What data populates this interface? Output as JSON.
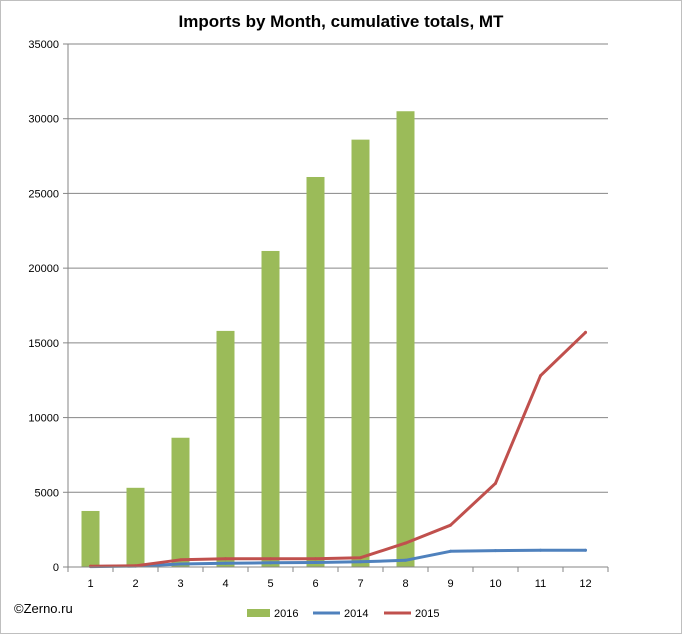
{
  "title": "Imports by Month, cumulative totals, MT",
  "copyright": "©Zerno.ru",
  "colors": {
    "2016": "#9bbb59",
    "2014": "#4f81bd",
    "2015": "#c0504d",
    "grid": "#868686",
    "axis": "#868686"
  },
  "chart_data": {
    "type": "bar",
    "title": "Imports by Month, cumulative totals, MT",
    "xlabel": "",
    "ylabel": "",
    "categories": [
      "1",
      "2",
      "3",
      "4",
      "5",
      "6",
      "7",
      "8",
      "9",
      "10",
      "11",
      "12"
    ],
    "ylim": [
      0,
      35000
    ],
    "yticks": [
      0,
      5000,
      10000,
      15000,
      20000,
      25000,
      30000,
      35000
    ],
    "grid": true,
    "legend_position": "bottom",
    "series": [
      {
        "name": "2016",
        "type": "bar",
        "color": "#9bbb59",
        "values": [
          3750,
          5300,
          8650,
          15800,
          21150,
          26100,
          28600,
          30500,
          null,
          null,
          null,
          null
        ]
      },
      {
        "name": "2014",
        "type": "line",
        "color": "#4f81bd",
        "values": [
          30,
          60,
          200,
          250,
          280,
          300,
          350,
          450,
          1050,
          1100,
          1120,
          1120
        ]
      },
      {
        "name": "2015",
        "type": "line",
        "color": "#c0504d",
        "values": [
          50,
          80,
          480,
          550,
          550,
          550,
          620,
          1600,
          2800,
          5600,
          12800,
          15700
        ]
      }
    ]
  }
}
